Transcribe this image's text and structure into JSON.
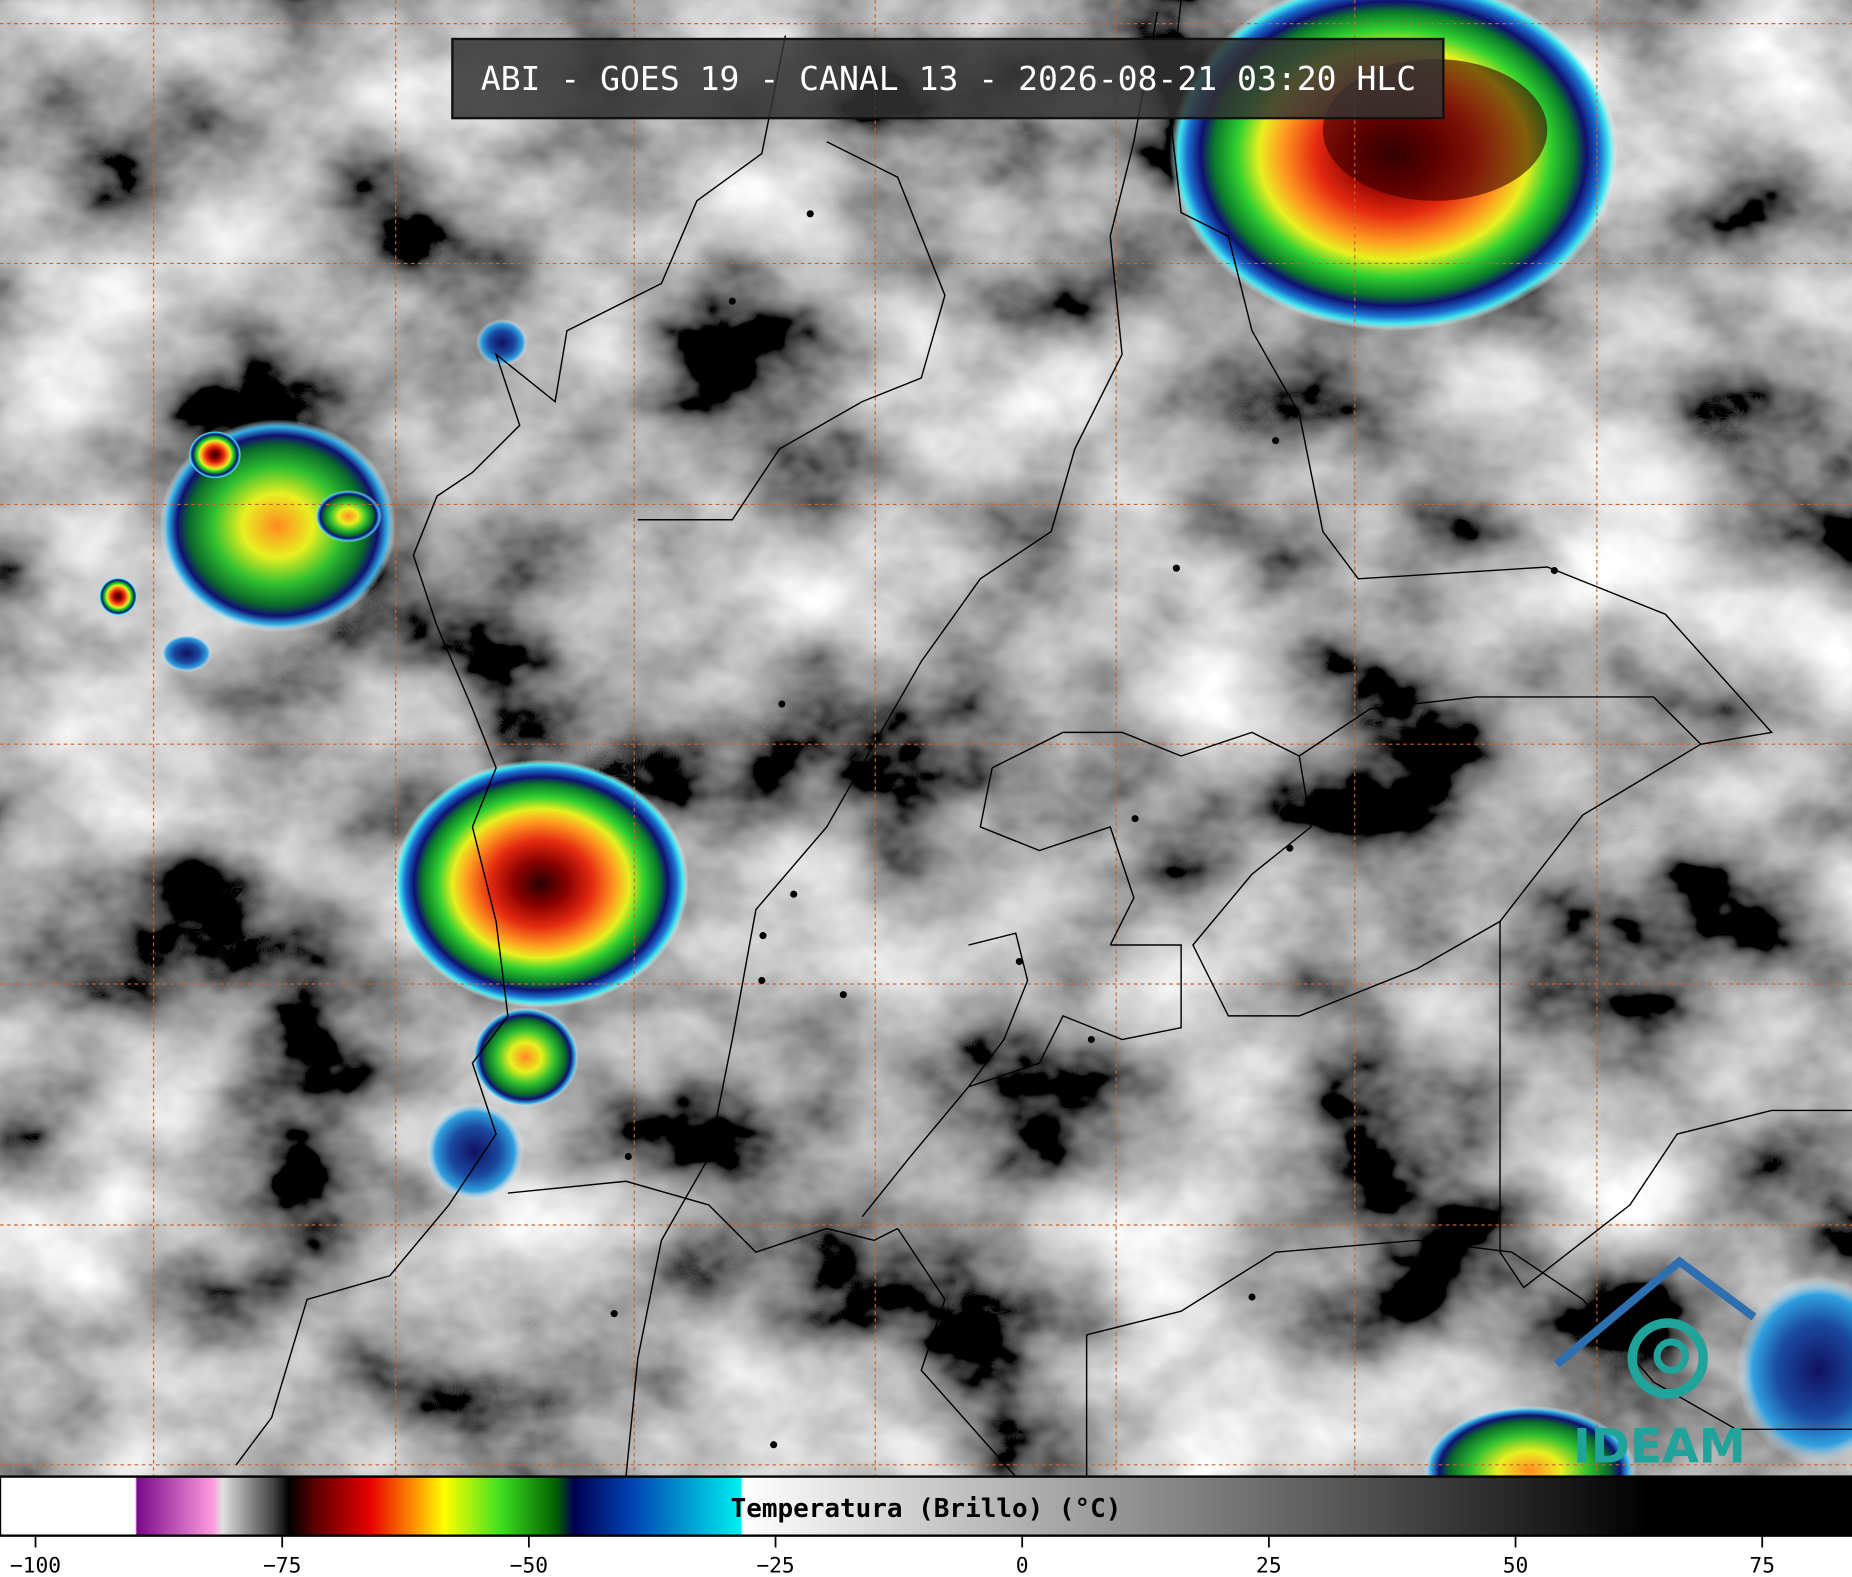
{
  "header": {
    "title": "ABI - GOES 19 - CANAL 13 - 2026-08-21 03:20 HLC"
  },
  "colorbar": {
    "label": "Temperatura (Brillo) (°C)",
    "lim": [
      -103.6,
      84.1
    ],
    "ticks": [
      {
        "value": -100,
        "label": "−100"
      },
      {
        "value": -75,
        "label": "−75"
      },
      {
        "value": -50,
        "label": "−50"
      },
      {
        "value": -25,
        "label": "−25"
      },
      0,
      25,
      50,
      75
    ]
  },
  "logo": {
    "text": "IDEAM"
  }
}
